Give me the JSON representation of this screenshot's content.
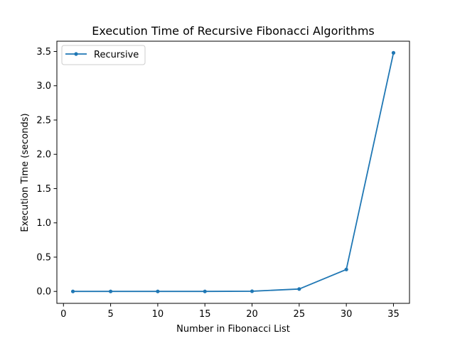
{
  "colors": {
    "series": "#1f77b4",
    "axis": "#000000",
    "background": "#ffffff",
    "legend_border": "#cccccc"
  },
  "chart_data": {
    "type": "line",
    "title": "Execution Time of Recursive Fibonacci Algorithms",
    "xlabel": "Number in Fibonacci List",
    "ylabel": "Execution Time (seconds)",
    "xlim": [
      -0.7,
      36.7
    ],
    "ylim": [
      -0.174,
      3.65
    ],
    "x_ticks": [
      0,
      5,
      10,
      15,
      20,
      25,
      30,
      35
    ],
    "x_tick_labels": [
      "0",
      "5",
      "10",
      "15",
      "20",
      "25",
      "30",
      "35"
    ],
    "y_ticks": [
      0.0,
      0.5,
      1.0,
      1.5,
      2.0,
      2.5,
      3.0,
      3.5
    ],
    "y_tick_labels": [
      "0.0",
      "0.5",
      "1.0",
      "1.5",
      "2.0",
      "2.5",
      "3.0",
      "3.5"
    ],
    "grid": false,
    "legend": {
      "position": "upper-left",
      "entries": [
        "Recursive"
      ]
    },
    "x": [
      1,
      5,
      10,
      15,
      20,
      25,
      30,
      35
    ],
    "series": [
      {
        "name": "Recursive",
        "values": [
          0.0,
          0.0,
          0.0,
          0.0,
          0.003,
          0.035,
          0.32,
          3.48
        ],
        "marker": "circle"
      }
    ]
  }
}
